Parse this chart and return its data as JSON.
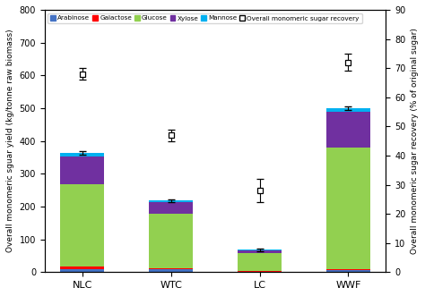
{
  "categories": [
    "NLC",
    "WTC",
    "LC",
    "WWF"
  ],
  "arabinose": [
    10,
    8,
    2,
    5
  ],
  "galactose": [
    8,
    5,
    2,
    5
  ],
  "glucose": [
    250,
    165,
    55,
    370
  ],
  "xylose": [
    85,
    35,
    8,
    110
  ],
  "mannose": [
    10,
    5,
    1,
    10
  ],
  "bar_totals": [
    363,
    218,
    68,
    500
  ],
  "bar_errors": [
    6,
    4,
    5,
    6
  ],
  "recovery_values": [
    68,
    47,
    28,
    72
  ],
  "recovery_errors": [
    2,
    2,
    4,
    3
  ],
  "colors": {
    "arabinose": "#4472c4",
    "galactose": "#ff0000",
    "glucose": "#92d050",
    "xylose": "#7030a0",
    "mannose": "#00b0f0"
  },
  "ylim_left": [
    0,
    800
  ],
  "ylim_right": [
    0,
    90
  ],
  "yticks_left": [
    0,
    100,
    200,
    300,
    400,
    500,
    600,
    700,
    800
  ],
  "yticks_right": [
    0,
    10,
    20,
    30,
    40,
    50,
    60,
    70,
    80,
    90
  ],
  "ylabel_left": "Overall monomeric sguar yield (kg/tonne raw biomass)",
  "ylabel_right": "Overall monomeric sugar recovery (% of original sugar)",
  "bar_width": 0.5,
  "background_color": "#ffffff",
  "legend_labels": [
    "Arabinose",
    "Galactose",
    "Glucose",
    "Xylose",
    "Mannose",
    "Overall monomeric sugar recovery"
  ]
}
